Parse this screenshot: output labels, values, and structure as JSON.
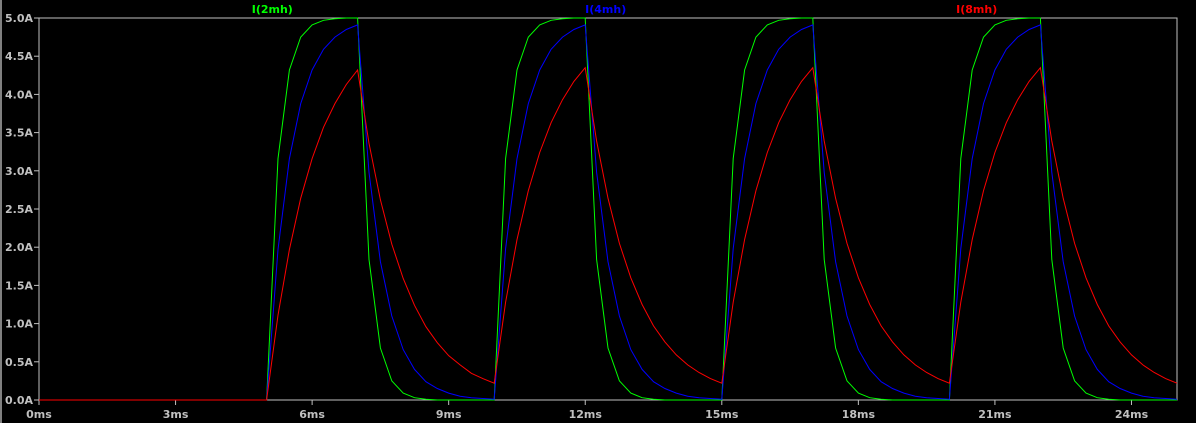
{
  "chart_data": {
    "type": "line",
    "title": "",
    "xlabel": "",
    "ylabel": "",
    "x_unit": "ms",
    "x_start": 0,
    "x_step": 0.25,
    "xlim": [
      0,
      25
    ],
    "ylim": [
      0,
      5
    ],
    "grid": false,
    "legend": "top",
    "background": "#000000",
    "axis_color": "#c0c0c0",
    "x_ticks": [
      {
        "value": 0,
        "label": "0ms"
      },
      {
        "value": 3,
        "label": "3ms"
      },
      {
        "value": 6,
        "label": "6ms"
      },
      {
        "value": 9,
        "label": "9ms"
      },
      {
        "value": 12,
        "label": "12ms"
      },
      {
        "value": 15,
        "label": "15ms"
      },
      {
        "value": 18,
        "label": "18ms"
      },
      {
        "value": 21,
        "label": "21ms"
      },
      {
        "value": 24,
        "label": "24ms"
      }
    ],
    "y_ticks": [
      {
        "value": 0,
        "label": "0.0A"
      },
      {
        "value": 0.5,
        "label": "0.5A"
      },
      {
        "value": 1,
        "label": "1.0A"
      },
      {
        "value": 1.5,
        "label": "1.5A"
      },
      {
        "value": 2,
        "label": "2.0A"
      },
      {
        "value": 2.5,
        "label": "2.5A"
      },
      {
        "value": 3,
        "label": "3.0A"
      },
      {
        "value": 3.5,
        "label": "3.5A"
      },
      {
        "value": 4,
        "label": "4.0A"
      },
      {
        "value": 4.5,
        "label": "4.5A"
      },
      {
        "value": 5,
        "label": "5.0A"
      }
    ],
    "series": [
      {
        "name": "I(2mh)",
        "color": "#00ff00",
        "legend_pos": 0.205,
        "values": [
          0,
          0,
          0,
          0,
          0,
          0,
          0,
          0,
          0,
          0,
          0,
          0,
          0,
          0,
          0,
          0,
          0,
          0,
          0,
          0,
          0,
          3.16,
          4.32,
          4.75,
          4.91,
          4.97,
          4.99,
          5,
          5,
          1.84,
          0.68,
          0.25,
          0.09,
          0.03,
          0.01,
          0,
          0,
          0,
          0,
          0,
          0,
          3.16,
          4.32,
          4.75,
          4.91,
          4.97,
          4.99,
          5,
          5,
          1.84,
          0.68,
          0.25,
          0.09,
          0.03,
          0.01,
          0,
          0,
          0,
          0,
          0,
          0,
          3.16,
          4.32,
          4.75,
          4.91,
          4.97,
          4.99,
          5,
          5,
          1.84,
          0.68,
          0.25,
          0.09,
          0.03,
          0.01,
          0,
          0,
          0,
          0,
          0,
          0,
          3.16,
          4.32,
          4.75,
          4.91,
          4.97,
          4.99,
          5,
          5,
          1.84,
          0.68,
          0.25,
          0.09,
          0.03,
          0.01,
          0,
          0,
          0,
          0,
          0,
          0
        ]
      },
      {
        "name": "I(4mh)",
        "color": "#0000ff",
        "legend_pos": 0.498,
        "values": [
          0,
          0,
          0,
          0,
          0,
          0,
          0,
          0,
          0,
          0,
          0,
          0,
          0,
          0,
          0,
          0,
          0,
          0,
          0,
          0,
          0,
          1.97,
          3.16,
          3.88,
          4.32,
          4.59,
          4.75,
          4.85,
          4.91,
          2.98,
          1.81,
          1.1,
          0.66,
          0.4,
          0.24,
          0.15,
          0.09,
          0.05,
          0.03,
          0.02,
          0.01,
          1.98,
          3.16,
          3.88,
          4.32,
          4.59,
          4.75,
          4.85,
          4.91,
          2.98,
          1.81,
          1.1,
          0.66,
          0.4,
          0.24,
          0.15,
          0.09,
          0.05,
          0.03,
          0.02,
          0.01,
          1.98,
          3.16,
          3.88,
          4.32,
          4.59,
          4.75,
          4.85,
          4.91,
          2.98,
          1.81,
          1.1,
          0.66,
          0.4,
          0.24,
          0.15,
          0.09,
          0.05,
          0.03,
          0.02,
          0.01,
          1.98,
          3.16,
          3.88,
          4.32,
          4.59,
          4.75,
          4.85,
          4.91,
          2.98,
          1.81,
          1.1,
          0.66,
          0.4,
          0.24,
          0.15,
          0.09,
          0.05,
          0.03,
          0.02,
          0.01
        ]
      },
      {
        "name": "I(8mh)",
        "color": "#ff0000",
        "legend_pos": 0.824,
        "values": [
          0,
          0,
          0,
          0,
          0,
          0,
          0,
          0,
          0,
          0,
          0,
          0,
          0,
          0,
          0,
          0,
          0,
          0,
          0,
          0,
          0,
          1.11,
          1.97,
          2.64,
          3.16,
          3.57,
          3.88,
          4.13,
          4.32,
          3.36,
          2.62,
          2.04,
          1.59,
          1.24,
          0.96,
          0.75,
          0.58,
          0.46,
          0.35,
          0.28,
          0.22,
          1.28,
          2.1,
          2.74,
          3.24,
          3.63,
          3.93,
          4.17,
          4.35,
          3.39,
          2.64,
          2.05,
          1.6,
          1.25,
          0.97,
          0.76,
          0.59,
          0.46,
          0.36,
          0.28,
          0.22,
          1.28,
          2.1,
          2.74,
          3.24,
          3.63,
          3.93,
          4.17,
          4.35,
          3.39,
          2.64,
          2.05,
          1.6,
          1.25,
          0.97,
          0.76,
          0.59,
          0.46,
          0.36,
          0.28,
          0.22,
          1.28,
          2.1,
          2.74,
          3.24,
          3.63,
          3.93,
          4.17,
          4.35,
          3.39,
          2.64,
          2.05,
          1.6,
          1.25,
          0.97,
          0.76,
          0.59,
          0.46,
          0.36,
          0.28,
          0.22
        ]
      }
    ]
  }
}
